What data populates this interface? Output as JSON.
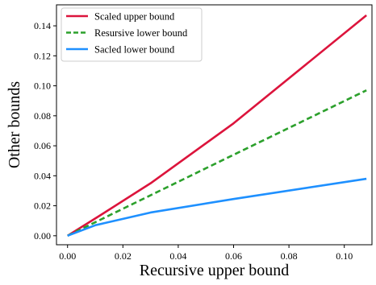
{
  "chart_data": {
    "type": "line",
    "xlabel": "Recursive upper bound",
    "ylabel": "Other bounds",
    "xlim": [
      -0.004,
      0.11
    ],
    "ylim": [
      -0.006,
      0.154
    ],
    "x_ticks": [
      0.0,
      0.02,
      0.04,
      0.06,
      0.08,
      0.1
    ],
    "x_tick_labels": [
      "0.00",
      "0.02",
      "0.04",
      "0.06",
      "0.08",
      "0.10"
    ],
    "y_ticks": [
      0.0,
      0.02,
      0.04,
      0.06,
      0.08,
      0.1,
      0.12,
      0.14
    ],
    "y_tick_labels": [
      "0.00",
      "0.02",
      "0.04",
      "0.06",
      "0.08",
      "0.10",
      "0.12",
      "0.14"
    ],
    "grid": false,
    "legend_position": "top-left",
    "series": [
      {
        "name": "Scaled upper bound",
        "color": "#dc143c",
        "style": "solid",
        "x": [
          0.0,
          0.01,
          0.03,
          0.06,
          0.108
        ],
        "y": [
          0.0,
          0.0115,
          0.035,
          0.075,
          0.147
        ]
      },
      {
        "name": "Resursive lower bound",
        "color": "#2ca02c",
        "style": "dashed",
        "x": [
          0.0,
          0.01,
          0.03,
          0.06,
          0.108
        ],
        "y": [
          0.0,
          0.009,
          0.027,
          0.054,
          0.097
        ]
      },
      {
        "name": "Sacled lower bound",
        "color": "#1e90ff",
        "style": "solid",
        "x": [
          0.0,
          0.01,
          0.03,
          0.06,
          0.108
        ],
        "y": [
          0.0,
          0.007,
          0.0155,
          0.0245,
          0.038
        ]
      }
    ]
  }
}
